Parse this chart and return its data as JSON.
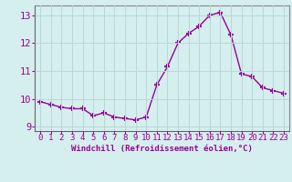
{
  "x": [
    0,
    1,
    2,
    3,
    4,
    5,
    6,
    7,
    8,
    9,
    10,
    11,
    12,
    13,
    14,
    15,
    16,
    17,
    18,
    19,
    20,
    21,
    22,
    23
  ],
  "y": [
    9.9,
    9.8,
    9.7,
    9.65,
    9.65,
    9.4,
    9.5,
    9.35,
    9.3,
    9.25,
    9.35,
    10.5,
    11.15,
    12.0,
    12.35,
    12.6,
    13.0,
    13.1,
    12.3,
    10.9,
    10.8,
    10.4,
    10.3,
    10.2
  ],
  "line_color": "#990099",
  "marker": "+",
  "markersize": 4,
  "linewidth": 1.0,
  "xlabel": "Windchill (Refroidissement éolien,°C)",
  "xlabel_color": "#990099",
  "ylabel": "",
  "title": "",
  "xlim": [
    -0.5,
    23.5
  ],
  "ylim": [
    8.85,
    13.35
  ],
  "yticks": [
    9,
    10,
    11,
    12,
    13
  ],
  "xticks": [
    0,
    1,
    2,
    3,
    4,
    5,
    6,
    7,
    8,
    9,
    10,
    11,
    12,
    13,
    14,
    15,
    16,
    17,
    18,
    19,
    20,
    21,
    22,
    23
  ],
  "xtick_labels": [
    "0",
    "1",
    "2",
    "3",
    "4",
    "5",
    "6",
    "7",
    "8",
    "9",
    "10",
    "11",
    "12",
    "13",
    "14",
    "15",
    "16",
    "17",
    "18",
    "19",
    "20",
    "21",
    "22",
    "23"
  ],
  "background_color": "#d5eeee",
  "grid_color": "#b8d8d8",
  "tick_color": "#990099",
  "label_fontsize": 6.5,
  "tick_fontsize": 6.5,
  "ytick_fontsize": 7.5
}
